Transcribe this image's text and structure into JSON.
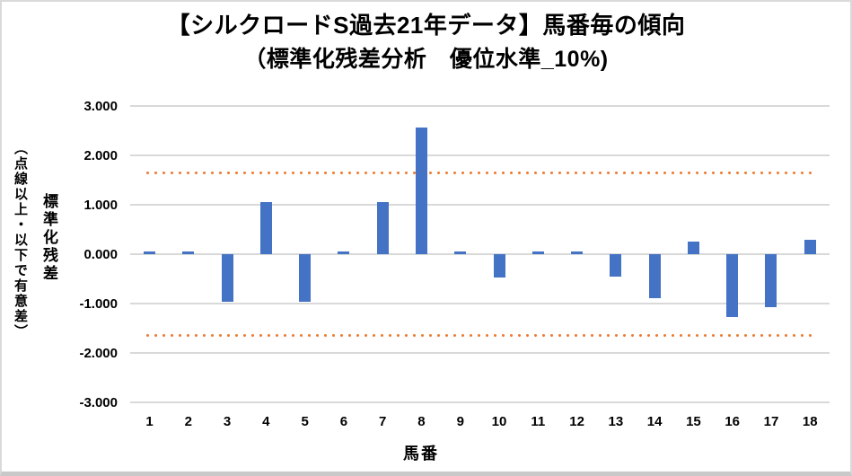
{
  "chart_data": {
    "type": "bar",
    "title_line1": "【シルクロードS過去21年データ】馬番毎の傾向",
    "title_line2": "（標準化残差分析　優位水準_10%)",
    "xlabel": "馬番",
    "ylabel_main": "標準化残差",
    "ylabel_sub": "（点線以上・以下で有意差）",
    "categories": [
      "1",
      "2",
      "3",
      "4",
      "5",
      "6",
      "7",
      "8",
      "9",
      "10",
      "11",
      "12",
      "13",
      "14",
      "15",
      "16",
      "17",
      "18"
    ],
    "values": [
      0.06,
      0.06,
      -0.97,
      1.06,
      -0.97,
      0.06,
      1.06,
      2.57,
      0.06,
      -0.47,
      0.06,
      0.06,
      -0.45,
      -0.89,
      0.26,
      -1.28,
      -1.08,
      0.29
    ],
    "ylim": [
      -3,
      3
    ],
    "yticks": [
      {
        "value": 3,
        "label": "3.000"
      },
      {
        "value": 2,
        "label": "2.000"
      },
      {
        "value": 1,
        "label": "1.000"
      },
      {
        "value": 0,
        "label": "0.000"
      },
      {
        "value": -1,
        "label": "-1.000"
      },
      {
        "value": -2,
        "label": "-2.000"
      },
      {
        "value": -3,
        "label": "-3.000"
      }
    ],
    "threshold_lines": [
      1.645,
      -1.645
    ],
    "significance_level_label": "10%",
    "grid": true,
    "legend": false,
    "colors": {
      "bar": "#4472C4",
      "threshold": "#ED7D31",
      "gridline": "#D9D9D9",
      "text": "#000000"
    }
  }
}
